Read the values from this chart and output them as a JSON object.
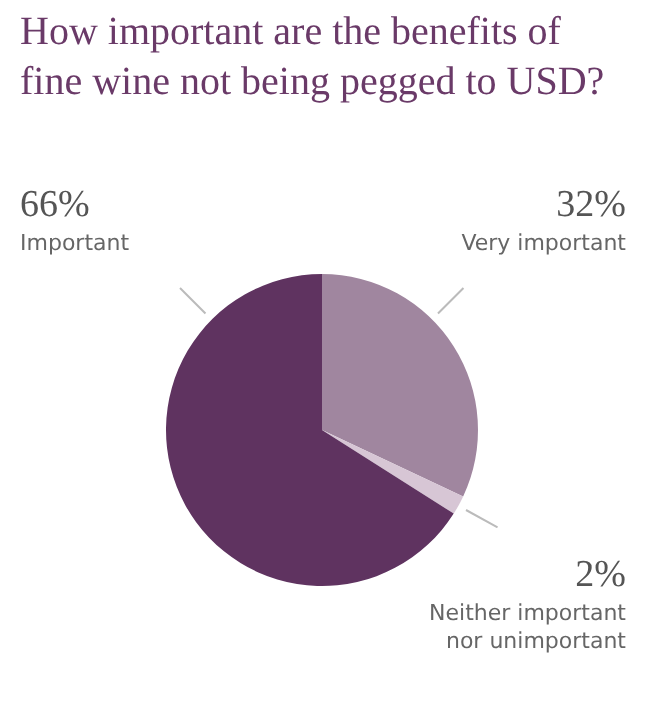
{
  "chart_data": {
    "type": "pie",
    "title": "How important are the benefits of fine wine not being pegged to USD?",
    "categories": [
      "Very important",
      "Neither important nor unimportant",
      "Important"
    ],
    "values": [
      32,
      2,
      66
    ],
    "value_labels": [
      "32%",
      "2%",
      "66%"
    ],
    "colors": [
      "#a0869f",
      "#d7c6d5",
      "#5f3360"
    ],
    "legend": false
  }
}
